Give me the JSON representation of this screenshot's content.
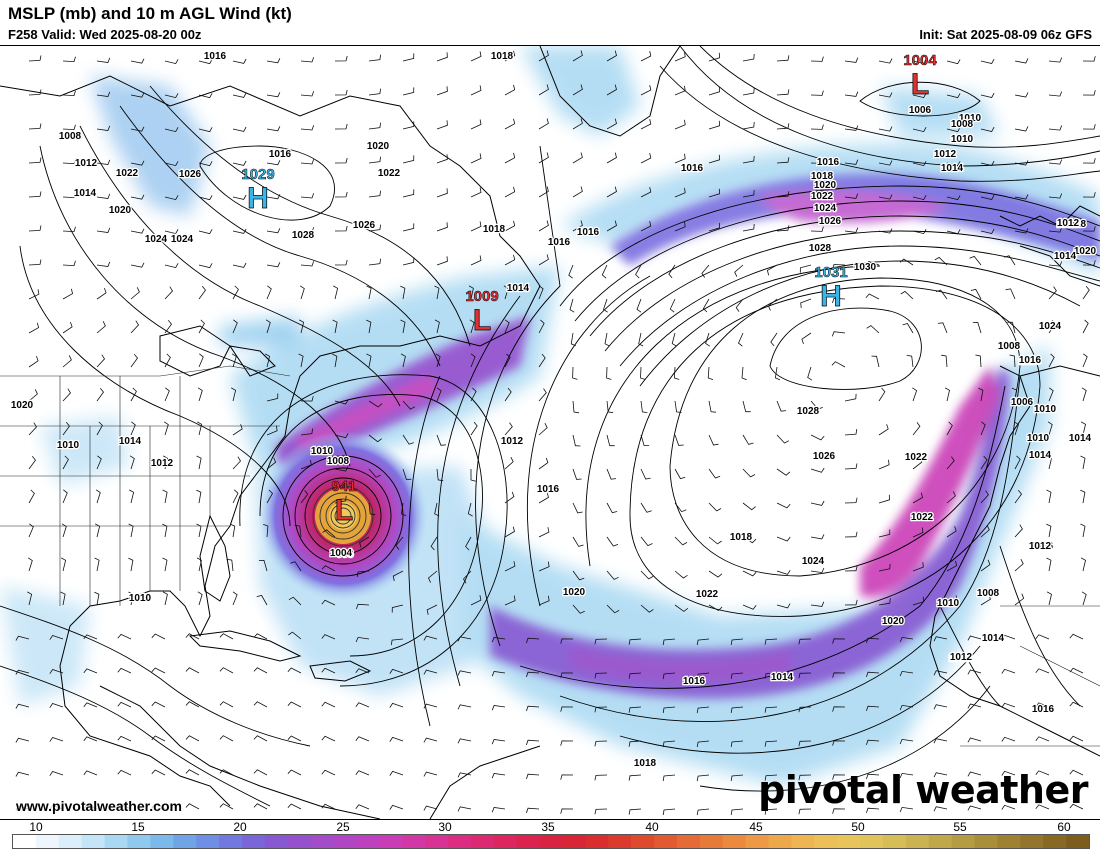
{
  "header": {
    "title": "MSLP (mb) and 10 m AGL Wind (kt)",
    "valid": "F258 Valid: Wed 2025-08-20 00z",
    "init": "Init: Sat 2025-08-09 06z GFS"
  },
  "footer": {
    "site": "www.pivotalweather.com",
    "brand": "pivotal weather"
  },
  "colors": {
    "low": "#e03030",
    "high": "#3cb4e6",
    "wind_light": "#bfe3f5",
    "wind_mid": "#7c6fe0",
    "wind_strong": "#c040c0",
    "wind_core": "#d81b60"
  },
  "pressure_centers": [
    {
      "type": "H",
      "value": "1029"
    },
    {
      "type": "L",
      "value": "1009"
    },
    {
      "type": "L",
      "value": "941"
    },
    {
      "type": "L",
      "value": "1004"
    },
    {
      "type": "H",
      "value": "1031"
    }
  ],
  "isobar_labels": [
    "1016",
    "1018",
    "1008",
    "1010",
    "1012",
    "1014",
    "1016",
    "1020",
    "1026",
    "1024",
    "1028",
    "1022",
    "1026",
    "1020",
    "1022",
    "1024",
    "1018",
    "1014",
    "1016",
    "1016",
    "1006",
    "1008",
    "1010",
    "1012",
    "1014",
    "1016",
    "1018",
    "1020",
    "1022",
    "1024",
    "1026",
    "1028",
    "1030",
    "1018",
    "1020",
    "1024",
    "1016",
    "1010",
    "1014",
    "1014",
    "1012",
    "1020",
    "1010",
    "1008",
    "998",
    "1004",
    "1018",
    "1016",
    "1022",
    "1028",
    "1026",
    "1022",
    "1018",
    "1024",
    "1020",
    "1022",
    "1020",
    "1014",
    "1016",
    "1010",
    "1008",
    "1006",
    "1012",
    "1010",
    "1012",
    "1006",
    "1010",
    "1008",
    "1012",
    "1010",
    "1018",
    "1016",
    "1012",
    "1014",
    "1016",
    "1012",
    "1014",
    "1016",
    "1014"
  ],
  "colorbar": {
    "ticks": [
      "10",
      "15",
      "20",
      "25",
      "30",
      "35",
      "40",
      "45",
      "50",
      "55",
      "60"
    ],
    "colors": [
      "#ffffff",
      "#eef5fb",
      "#dbeefa",
      "#c4e4f7",
      "#a8d8f2",
      "#8fcaee",
      "#7ab9ea",
      "#6fa4e6",
      "#6e8fe3",
      "#7179df",
      "#7a66d9",
      "#8758d2",
      "#9550cd",
      "#a34bc8",
      "#b046c4",
      "#bd41bf",
      "#c93cb6",
      "#d337a6",
      "#d93295",
      "#dc2d83",
      "#dd2872",
      "#dd2560",
      "#dc2350",
      "#da2342",
      "#d92636",
      "#da2e2e",
      "#dc3a2c",
      "#df4a2e",
      "#e25a31",
      "#e56a35",
      "#e87a39",
      "#eb8a3f",
      "#ed9945",
      "#eea84c",
      "#eeb552",
      "#ecbf57",
      "#e8c45a",
      "#e0c35b",
      "#d6bd58",
      "#cbb352",
      "#c0a84a",
      "#b59c42",
      "#aa8f3a",
      "#9e8232",
      "#93752b",
      "#886924",
      "#7d5d1e"
    ]
  }
}
